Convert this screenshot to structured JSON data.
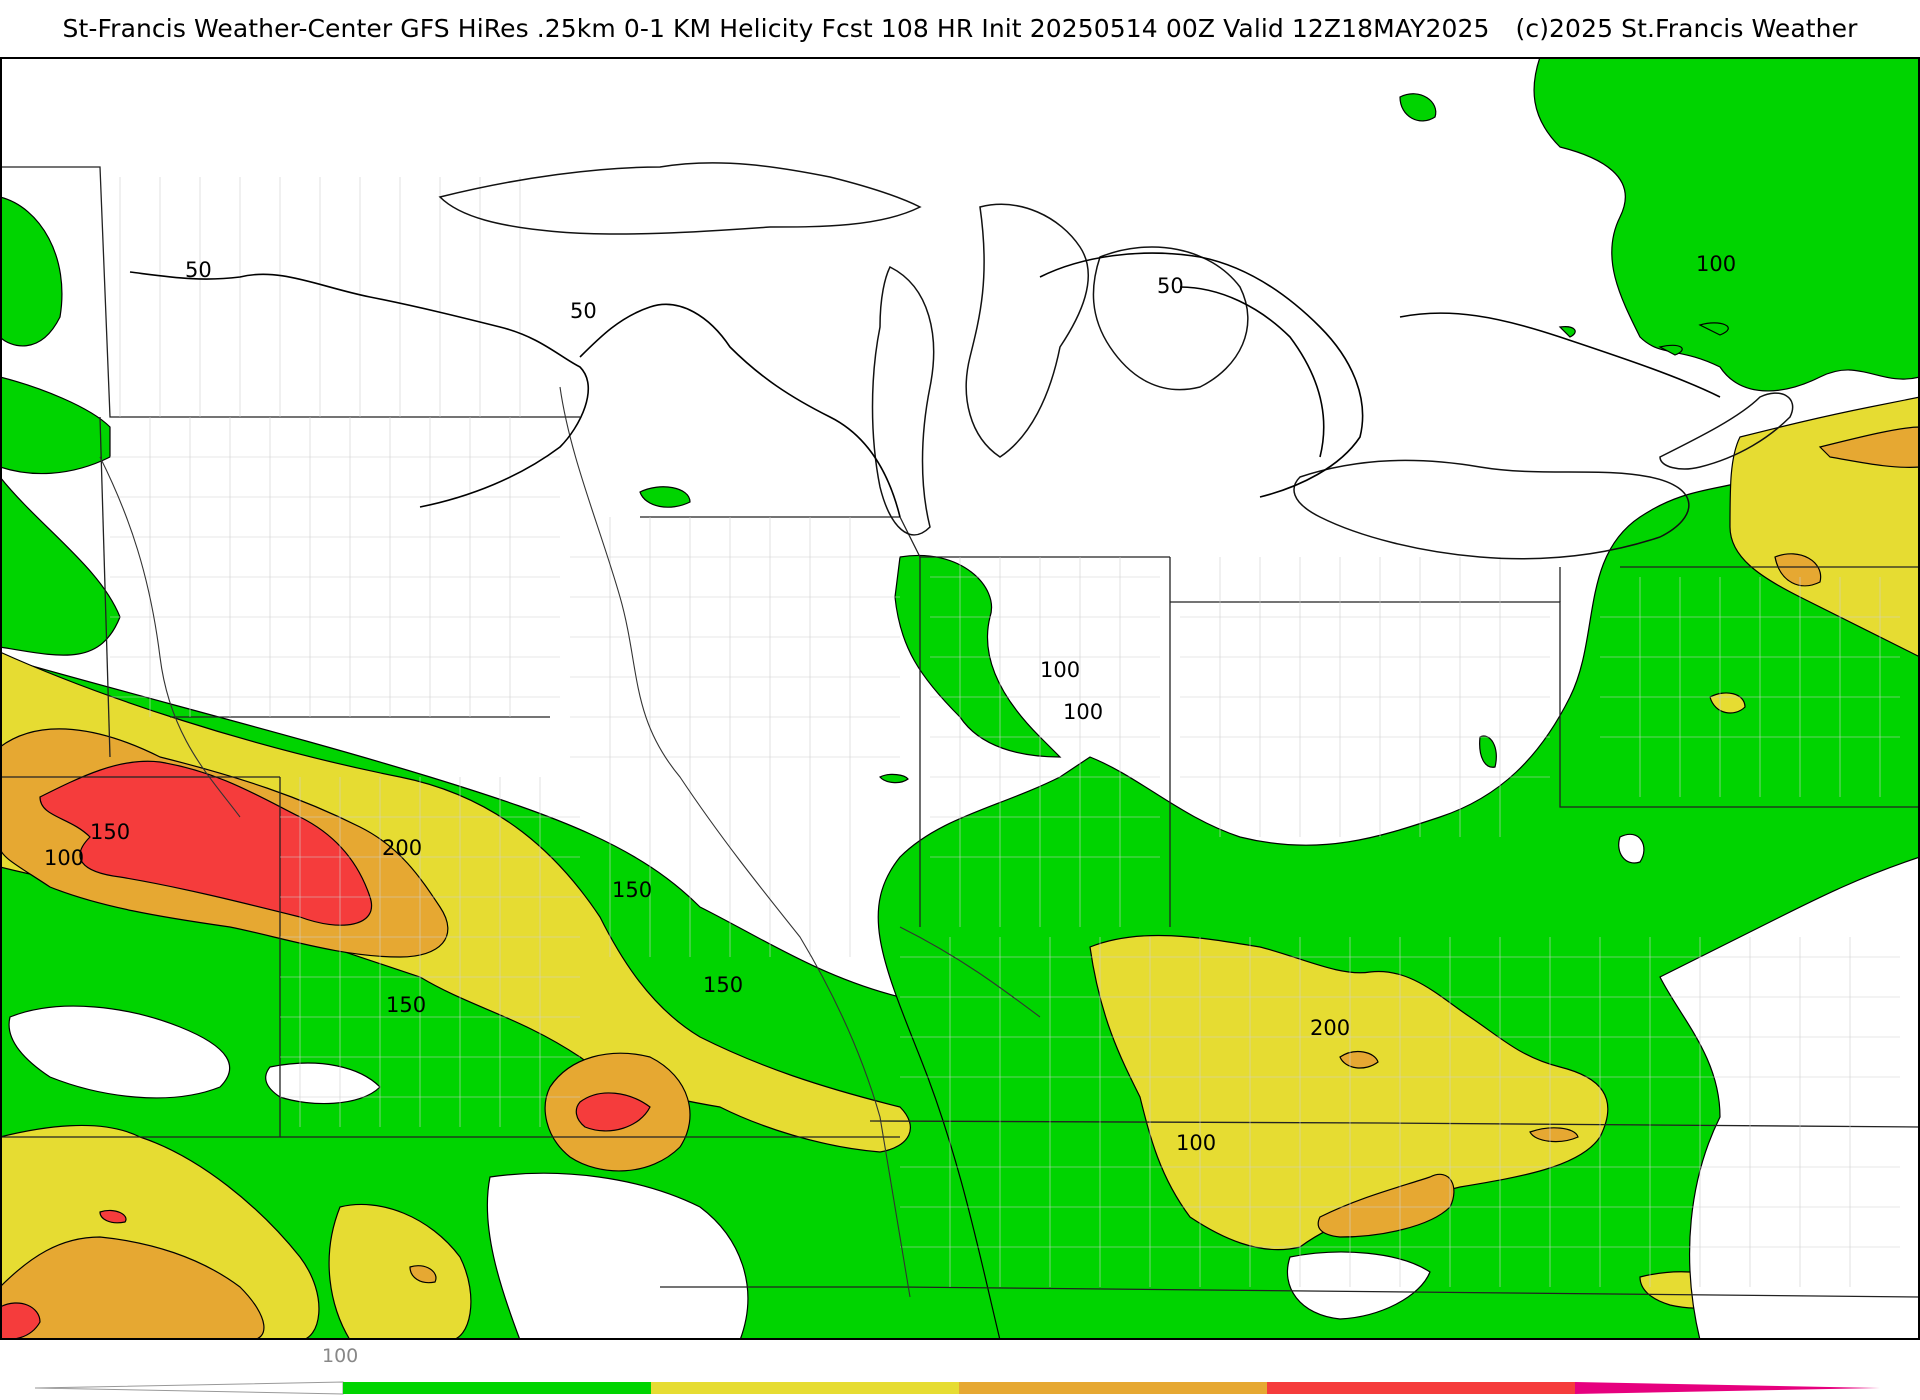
{
  "header": {
    "title": "St-Francis Weather-Center GFS HiRes .25km 0-1 KM Helicity Fcst 108 HR Init 20250514 00Z  Valid 12Z18MAY2025",
    "copyright": "(c)2025 St.Francis Weather"
  },
  "contour_labels": {
    "c50_west": "50",
    "c50_center": "50",
    "c50_lakes": "50",
    "c100_ne": "100",
    "c100_indiana": "100",
    "c100_ohio": "100",
    "c150_kansas": "150",
    "c100_kansas": "100",
    "c200_kansas": "200",
    "c150_missouri": "150",
    "c150_ozark": "150",
    "c150_south": "150",
    "c200_tenn": "200",
    "c100_south": "100"
  },
  "legend": {
    "tick_label": "100",
    "colors": {
      "band_100_150": "#00d400",
      "band_150_200": "#e6dc32",
      "band_200_250": "#e6a832",
      "band_250_300": "#f53c3c",
      "band_300_plus": "#e6007e",
      "under": "#ffffff"
    }
  }
}
